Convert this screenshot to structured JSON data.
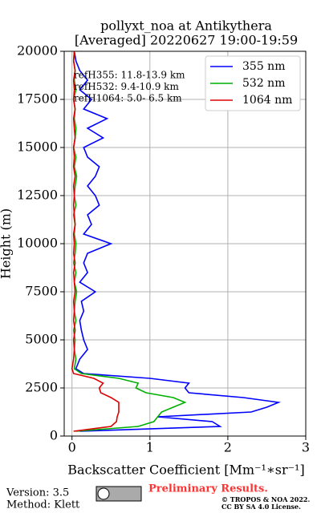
{
  "chart_data": {
    "type": "line",
    "title": "pollyxt_noa at Antikythera",
    "subtitle": "[Averaged] 20220627 19:00-19:59",
    "x_label": "Backscatter Coefficient [Mm⁻¹∗sr⁻¹]",
    "y_label": "Height (m)",
    "xlim": [
      -0.1,
      3
    ],
    "xticks": [
      0,
      1,
      2,
      3
    ],
    "ylim": [
      0,
      20000
    ],
    "yticks": [
      0,
      2500,
      5000,
      7500,
      10000,
      12500,
      15000,
      17500,
      20000
    ],
    "grid": true,
    "legend": "upper right",
    "heights": [
      250,
      500,
      750,
      1000,
      1250,
      1500,
      1750,
      2000,
      2250,
      2500,
      2750,
      3000,
      3250,
      3500,
      4000,
      4500,
      5000,
      5500,
      6000,
      6500,
      7000,
      7500,
      8000,
      8500,
      9000,
      9500,
      10000,
      10500,
      11000,
      11500,
      12000,
      12500,
      13000,
      13500,
      14000,
      14500,
      15000,
      15500,
      16000,
      16500,
      17000,
      17500,
      18000,
      18500,
      19000,
      19500,
      20000
    ],
    "series": [
      {
        "name": "355 nm",
        "color": "#0000ff",
        "values": [
          0.1,
          1.9,
          1.8,
          1.1,
          2.3,
          2.5,
          2.65,
          2.2,
          1.5,
          1.45,
          1.5,
          1.0,
          0.15,
          0.05,
          0.1,
          0.2,
          0.15,
          0.12,
          0.1,
          0.15,
          0.12,
          0.3,
          0.1,
          0.2,
          0.15,
          0.2,
          0.5,
          0.15,
          0.25,
          0.2,
          0.35,
          0.3,
          0.2,
          0.3,
          0.35,
          0.2,
          0.15,
          0.4,
          0.2,
          0.45,
          0.15,
          0.25,
          0.1,
          0.2,
          0.1,
          0.05,
          0.03
        ]
      },
      {
        "name": "532 nm",
        "color": "#00b000",
        "values": [
          0.05,
          0.85,
          1.05,
          1.1,
          1.15,
          1.3,
          1.45,
          1.3,
          0.95,
          0.82,
          0.85,
          0.6,
          0.12,
          0.03,
          0.05,
          0.03,
          0.04,
          0.02,
          0.05,
          0.03,
          0.04,
          0.06,
          0.03,
          0.05,
          0.02,
          0.04,
          0.05,
          0.03,
          0.04,
          0.02,
          0.05,
          0.03,
          0.04,
          0.06,
          0.03,
          0.05,
          0.02,
          0.04,
          0.05,
          0.03,
          0.04,
          0.02,
          0.05,
          0.03,
          0.04,
          0.02,
          0.03
        ]
      },
      {
        "name": "1064 nm",
        "color": "#dd0000",
        "values": [
          0.02,
          0.5,
          0.57,
          0.58,
          0.6,
          0.6,
          0.6,
          0.5,
          0.37,
          0.35,
          0.4,
          0.28,
          0.02,
          0.0,
          0.02,
          0.03,
          0.02,
          0.04,
          0.02,
          0.03,
          0.02,
          0.04,
          0.03,
          0.02,
          0.04,
          0.02,
          0.03,
          0.02,
          0.04,
          0.03,
          0.02,
          0.03,
          0.02,
          0.04,
          0.02,
          0.03,
          0.02,
          0.04,
          0.03,
          0.02,
          0.04,
          0.02,
          0.03,
          0.02,
          0.04,
          0.02,
          0.03
        ]
      }
    ],
    "annotations": [
      "refH355: 11.8-13.9 km",
      "refH532:  9.4-10.9 km",
      "refH1064:  5.0- 6.5 km"
    ],
    "footer": {
      "version": "Version: 3.5",
      "method": "Method: Klett",
      "status": "Preliminary Results.",
      "copyright": "© TROPOS & NOA 2022.",
      "license": "CC BY SA 4.0 License."
    }
  }
}
